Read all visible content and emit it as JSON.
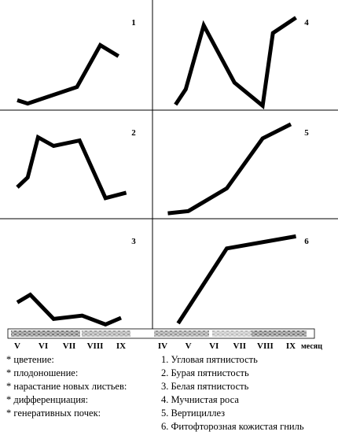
{
  "chart_data": [
    {
      "type": "line",
      "label": "1",
      "column": "left",
      "row": 0,
      "x": [
        5.0,
        5.4,
        7.3,
        8.2,
        8.9
      ],
      "values": [
        9,
        6,
        21,
        59,
        49
      ],
      "ylim": [
        0,
        100
      ],
      "color": "#000000"
    },
    {
      "type": "line",
      "label": "2",
      "column": "left",
      "row": 1,
      "x": [
        5.0,
        5.4,
        5.8,
        6.4,
        7.4,
        8.4,
        9.2
      ],
      "values": [
        29,
        38,
        75,
        67,
        72,
        19,
        24
      ],
      "ylim": [
        0,
        100
      ],
      "color": "#000000"
    },
    {
      "type": "line",
      "label": "3",
      "column": "left",
      "row": 2,
      "x": [
        5.0,
        5.5,
        6.4,
        7.5,
        8.4,
        9.0
      ],
      "values": [
        24,
        31,
        9,
        12,
        4,
        10
      ],
      "ylim": [
        0,
        100
      ],
      "color": "#000000"
    },
    {
      "type": "line",
      "label": "4",
      "column": "right",
      "row": 0,
      "x": [
        4.5,
        4.9,
        5.6,
        6.8,
        7.9,
        8.3,
        9.2
      ],
      "values": [
        5,
        19,
        77,
        25,
        4,
        70,
        84
      ],
      "ylim": [
        0,
        100
      ],
      "color": "#000000"
    },
    {
      "type": "line",
      "label": "5",
      "column": "right",
      "row": 1,
      "x": [
        4.2,
        5.0,
        6.5,
        7.9,
        9.0
      ],
      "values": [
        5,
        7,
        28,
        74,
        87
      ],
      "ylim": [
        0,
        100
      ],
      "color": "#000000"
    },
    {
      "type": "line",
      "label": "6",
      "column": "right",
      "row": 2,
      "x": [
        4.6,
        6.5,
        9.2
      ],
      "values": [
        5,
        73,
        84
      ],
      "ylim": [
        0,
        100
      ],
      "color": "#000000"
    }
  ],
  "x_axes": {
    "left": {
      "xlim": [
        5,
        9
      ],
      "xticks": [
        {
          "value": 5,
          "label": "V"
        },
        {
          "value": 6,
          "label": "VI"
        },
        {
          "value": 7,
          "label": "VII"
        },
        {
          "value": 8,
          "label": "VIII"
        },
        {
          "value": 9,
          "label": "IX"
        }
      ]
    },
    "right": {
      "xlim": [
        4,
        9
      ],
      "xticks": [
        {
          "value": 4,
          "label": "IV"
        },
        {
          "value": 5,
          "label": "V"
        },
        {
          "value": 6,
          "label": "VI"
        },
        {
          "value": 7,
          "label": "VII"
        },
        {
          "value": 8,
          "label": "VIII"
        },
        {
          "value": 9,
          "label": "IX"
        }
      ],
      "unit": "месяц"
    }
  },
  "legend_left": [
    "* цветение:",
    "* плодоношение:",
    "* нарастание новых листьев:",
    "* дифференциация:",
    "* генеративных почек:"
  ],
  "legend_right": [
    "1. Угловая пятнистость",
    "2. Бурая пятнистость",
    "3. Белая пятнистость",
    "4. Мучнистая роса",
    "5. Вертициллез",
    "6. Фитофторозная кожистая гниль"
  ]
}
